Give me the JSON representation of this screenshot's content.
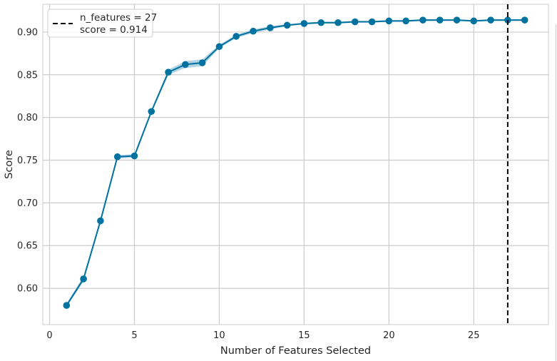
{
  "chart_data": {
    "type": "line",
    "title": "",
    "xlabel": "Number of Features Selected",
    "ylabel": "Score",
    "xlim": [
      -0.4,
      29.4
    ],
    "ylim": [
      0.5575,
      0.9325
    ],
    "xticks": [
      0,
      5,
      10,
      15,
      20,
      25
    ],
    "yticks": [
      0.6,
      0.65,
      0.7,
      0.75,
      0.8,
      0.85,
      0.9
    ],
    "grid": true,
    "legend_position": "top-left",
    "series": [
      {
        "x": [
          1,
          2,
          3,
          4,
          5,
          6,
          7,
          8,
          9,
          10,
          11,
          12,
          13,
          14,
          15,
          16,
          17,
          18,
          19,
          20,
          21,
          22,
          23,
          24,
          25,
          26,
          27,
          28
        ],
        "values": [
          0.58,
          0.611,
          0.679,
          0.754,
          0.755,
          0.807,
          0.853,
          0.862,
          0.864,
          0.883,
          0.895,
          0.901,
          0.905,
          0.908,
          0.91,
          0.911,
          0.911,
          0.912,
          0.912,
          0.913,
          0.913,
          0.914,
          0.914,
          0.914,
          0.913,
          0.914,
          0.914,
          0.914
        ],
        "band": [
          0.002,
          0.003,
          0.003,
          0.002,
          0.002,
          0.002,
          0.003,
          0.004,
          0.004,
          0.002,
          0.002,
          0.002,
          0.002,
          0.001,
          0.001,
          0.001,
          0.001,
          0.001,
          0.001,
          0.001,
          0.001,
          0.001,
          0.001,
          0.001,
          0.001,
          0.001,
          0.001,
          0.001
        ]
      }
    ],
    "vline": {
      "x": 27,
      "style": "dashed"
    },
    "legend": {
      "line1": "n_features = 27",
      "line2": "score = 0.914"
    },
    "colors": {
      "series": "#0072a0",
      "band": "#7fb8cf",
      "vline": "#000000",
      "grid": "#cccccc",
      "axes_bg": "#ffffff"
    }
  }
}
